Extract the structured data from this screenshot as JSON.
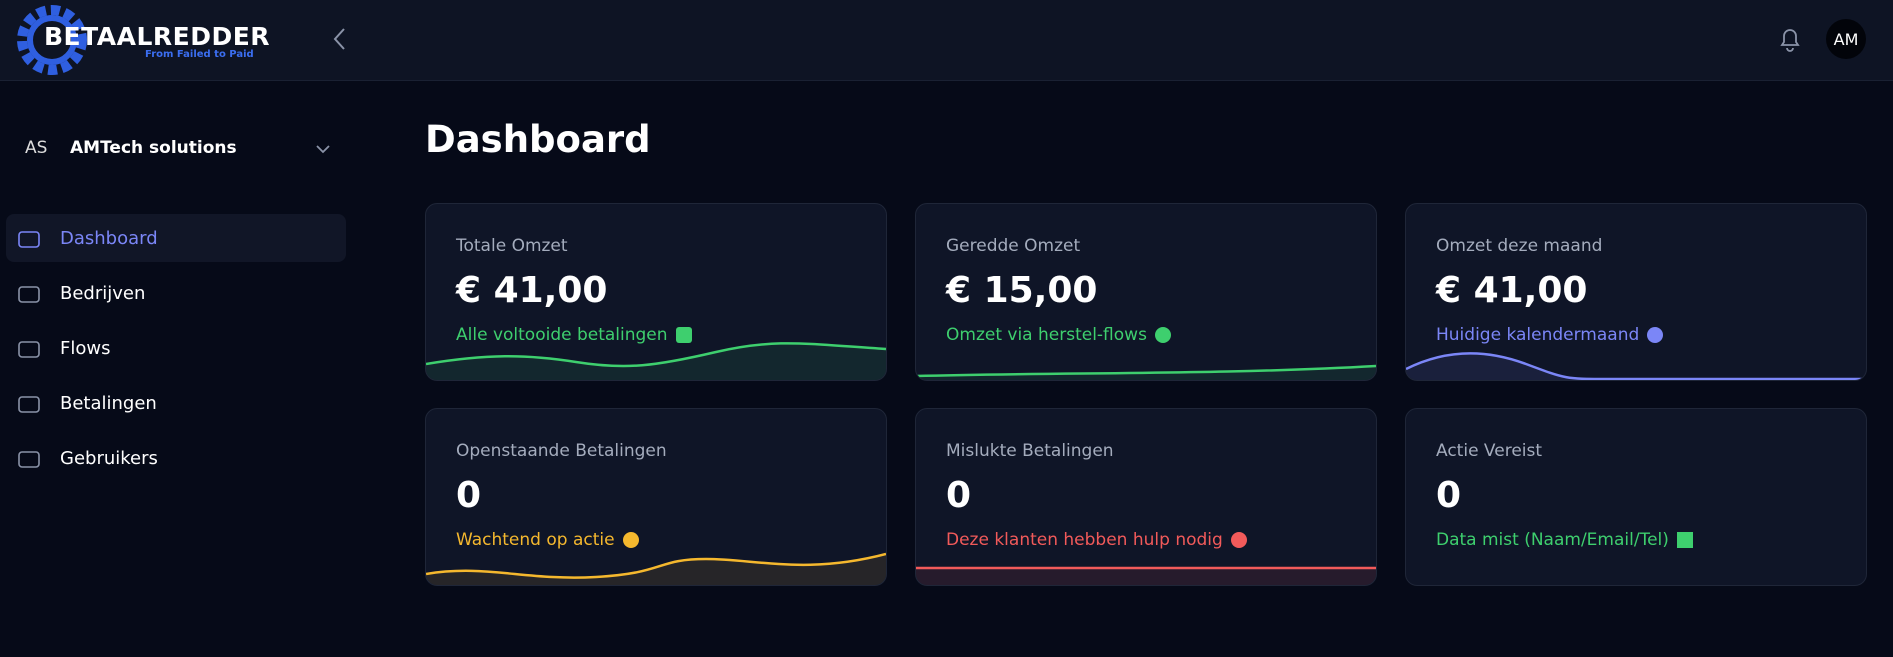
{
  "header": {
    "logo_title": "BETAALREDDER",
    "logo_tagline": "From Failed to Paid",
    "user_initials": "AM"
  },
  "sidebar": {
    "org_initials": "AS",
    "org_name": "AMTech solutions",
    "nav": [
      "Dashboard",
      "Bedrijven",
      "Flows",
      "Betalingen",
      "Gebruikers"
    ]
  },
  "main": {
    "title": "Dashboard",
    "cards": [
      {
        "label": "Totale Omzet",
        "value": "€ 41,00",
        "note": "Alle voltooide betalingen"
      },
      {
        "label": "Geredde Omzet",
        "value": "€ 15,00",
        "note": "Omzet via herstel-flows"
      },
      {
        "label": "Omzet deze maand",
        "value": "€ 41,00",
        "note": "Huidige kalendermaand"
      },
      {
        "label": "Openstaande Betalingen",
        "value": "0",
        "note": "Wachtend op actie"
      },
      {
        "label": "Mislukte Betalingen",
        "value": "0",
        "note": "Deze klanten hebben hulp nodig"
      },
      {
        "label": "Actie Vereist",
        "value": "0",
        "note": "Data mist (Naam/Email/Tel)"
      }
    ]
  }
}
